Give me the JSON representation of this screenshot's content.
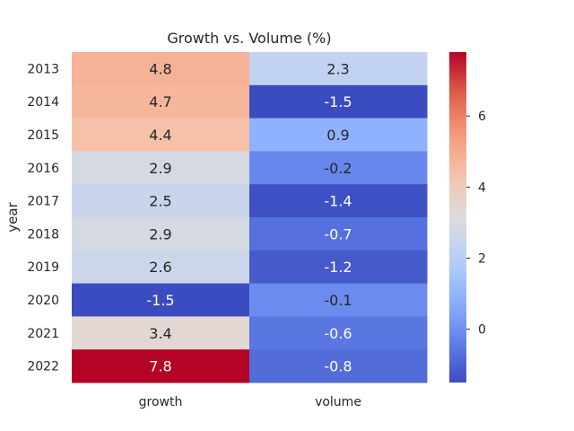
{
  "chart_data": {
    "type": "heatmap",
    "title": "Growth vs. Volume (%)",
    "xlabel": "",
    "ylabel": "year",
    "columns": [
      "growth",
      "volume"
    ],
    "rows": [
      "2013",
      "2014",
      "2015",
      "2016",
      "2017",
      "2018",
      "2019",
      "2020",
      "2021",
      "2022"
    ],
    "values": [
      [
        4.8,
        2.3
      ],
      [
        4.7,
        -1.5
      ],
      [
        4.4,
        0.9
      ],
      [
        2.9,
        -0.2
      ],
      [
        2.5,
        -1.4
      ],
      [
        2.9,
        -0.7
      ],
      [
        2.6,
        -1.2
      ],
      [
        -1.5,
        -0.1
      ],
      [
        3.4,
        -0.6
      ],
      [
        7.8,
        -0.8
      ]
    ],
    "cell_labels": [
      [
        "4.8",
        "2.3"
      ],
      [
        "4.7",
        "-1.5"
      ],
      [
        "4.4",
        "0.9"
      ],
      [
        "2.9",
        "-0.2"
      ],
      [
        "2.5",
        "-1.4"
      ],
      [
        "2.9",
        "-0.7"
      ],
      [
        "2.6",
        "-1.2"
      ],
      [
        "-1.5",
        "-0.1"
      ],
      [
        "3.4",
        "-0.6"
      ],
      [
        "7.8",
        "-0.8"
      ]
    ],
    "colormap": "coolwarm",
    "vmin": -1.5,
    "vmax": 7.8,
    "colorbar_ticks": [
      "0",
      "2",
      "4",
      "6"
    ],
    "colorbar_tick_values": [
      0,
      2,
      4,
      6
    ],
    "grid": false
  }
}
